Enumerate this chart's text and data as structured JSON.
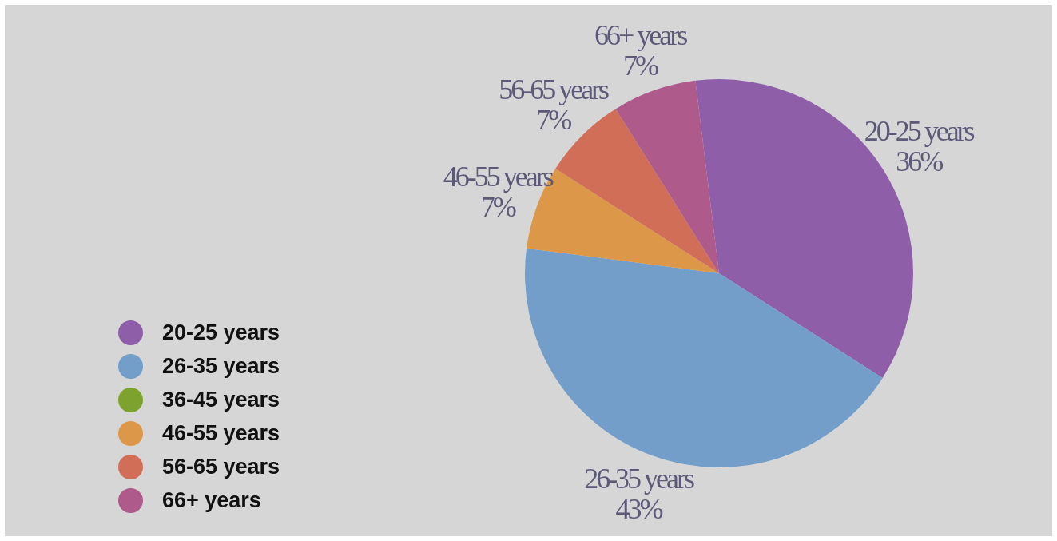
{
  "chart_data": {
    "type": "pie",
    "categories": [
      "20-25 years",
      "26-35 years",
      "36-45 years",
      "46-55 years",
      "56-65 years",
      "66+ years"
    ],
    "values": [
      36,
      43,
      0,
      7,
      7,
      7
    ],
    "value_labels": [
      "36%",
      "43%",
      null,
      "7%",
      "7%",
      "7%"
    ],
    "colors": [
      "#8e5ea8",
      "#729ec9",
      "#7da22e",
      "#dc9848",
      "#d06e58",
      "#ae5a8a"
    ],
    "legend": "bottom left"
  }
}
